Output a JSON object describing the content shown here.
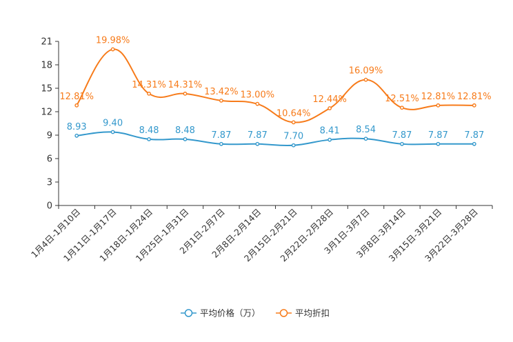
{
  "chart_data": {
    "type": "line",
    "title": "",
    "xlabel": "",
    "ylabel": "",
    "ylim": [
      0,
      21
    ],
    "yticks": [
      0,
      3,
      6,
      9,
      12,
      15,
      18,
      21
    ],
    "grid": false,
    "legend_position": "bottom-center",
    "categories": [
      "1月4日-1月10日",
      "1月11日-1月17日",
      "1月18日-1月24日",
      "1月25日-1月31日",
      "2月1日-2月7日",
      "2月8日-2月14日",
      "2月15日-2月21日",
      "2月22日-2月28日",
      "3月1日-3月7日",
      "3月8日-3月14日",
      "3月15日-3月21日",
      "3月22日-3月28日"
    ],
    "series": [
      {
        "name": "平均价格（万）",
        "color": "#3398CC",
        "values": [
          8.93,
          9.4,
          8.48,
          8.48,
          7.87,
          7.87,
          7.7,
          8.41,
          8.54,
          7.87,
          7.87,
          7.87
        ],
        "labels": [
          "8.93",
          "9.40",
          "8.48",
          "8.48",
          "7.87",
          "7.87",
          "7.70",
          "8.41",
          "8.54",
          "7.87",
          "7.87",
          "7.87"
        ]
      },
      {
        "name": "平均折扣",
        "color": "#F77B1A",
        "values": [
          12.81,
          19.98,
          14.31,
          14.31,
          13.42,
          13.0,
          10.64,
          12.44,
          16.09,
          12.51,
          12.81,
          12.81
        ],
        "labels": [
          "12.81%",
          "19.98%",
          "14.31%",
          "14.31%",
          "13.42%",
          "13.00%",
          "10.64%",
          "12.44%",
          "16.09%",
          "12.51%",
          "12.81%",
          "12.81%"
        ]
      }
    ]
  }
}
